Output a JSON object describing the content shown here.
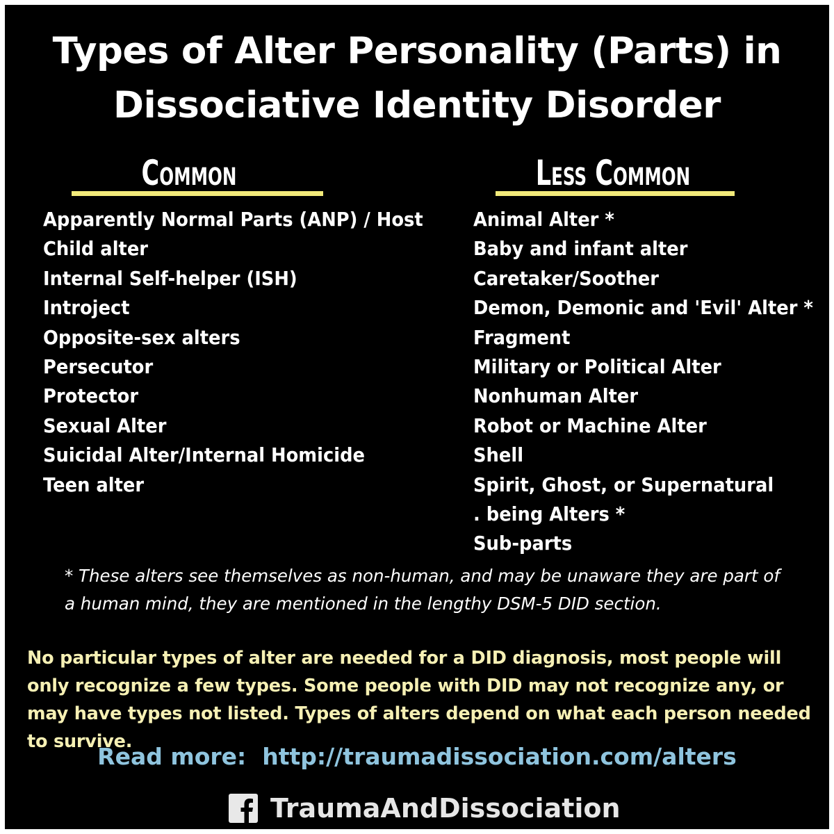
{
  "title": {
    "line1": "Types of Alter Personality (Parts) in",
    "line2": "Dissociative Identity Disorder"
  },
  "columns": {
    "common": {
      "heading": "Common",
      "items": [
        "Apparently Normal Parts (ANP) / Host",
        "Child alter",
        "Internal Self-helper (ISH)",
        "Introject",
        "Opposite-sex alters",
        "Persecutor",
        "Protector",
        "Sexual Alter",
        "Suicidal Alter/Internal Homicide",
        "Teen alter"
      ]
    },
    "less_common": {
      "heading": "Less Common",
      "items": [
        "Animal Alter *",
        "Baby and infant alter",
        "Caretaker/Soother",
        "Demon, Demonic and 'Evil' Alter *",
        "Fragment",
        "Military or Political Alter",
        "Nonhuman Alter",
        "Robot or Machine Alter",
        "Shell",
        "Spirit, Ghost, or Supernatural",
        ". being Alters *",
        "Sub-parts"
      ]
    }
  },
  "footnote": "* These alters see themselves as non-human, and may be unaware they are part of a human mind, they are mentioned in the lengthy DSM-5 DID section.",
  "summary": "No particular types of alter are needed for a DID diagnosis, most people will only recognize a few types. Some people with DID may not recognize any, or may have types not listed. Types of alters depend on what each person needed to survive.",
  "read_more": {
    "label": "Read more: ",
    "url": "http://traumadissociation.com/alters"
  },
  "brand": {
    "icon": "facebook-icon",
    "name": "TraumaAndDissociation"
  },
  "colors": {
    "background": "#000000",
    "text": "#ffffff",
    "underline": "#f2ea7a",
    "summary": "#f6f0b4",
    "link": "#8fc4de"
  }
}
